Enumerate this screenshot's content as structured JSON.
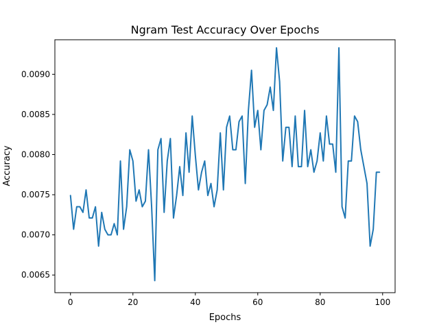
{
  "chart_data": {
    "type": "line",
    "title": "Ngram Test Accuracy Over Epochs",
    "xlabel": "Epochs",
    "ylabel": "Accuracy",
    "xlim": [
      -5,
      104
    ],
    "ylim": [
      0.00628,
      0.00943
    ],
    "xticks": [
      0,
      20,
      40,
      60,
      80,
      100
    ],
    "yticks": [
      0.0065,
      0.007,
      0.0075,
      0.008,
      0.0085,
      0.009
    ],
    "ytick_labels": [
      "0.0065",
      "0.0070",
      "0.0075",
      "0.0080",
      "0.0085",
      "0.0090"
    ],
    "grid": false,
    "series": [
      {
        "color": "#1f77b4",
        "x": [
          0,
          1,
          2,
          3,
          4,
          5,
          6,
          7,
          8,
          9,
          10,
          11,
          12,
          13,
          14,
          15,
          16,
          17,
          18,
          19,
          20,
          21,
          22,
          23,
          24,
          25,
          26,
          27,
          28,
          29,
          30,
          31,
          32,
          33,
          34,
          35,
          36,
          37,
          38,
          39,
          40,
          41,
          42,
          43,
          44,
          45,
          46,
          47,
          48,
          49,
          50,
          51,
          52,
          53,
          54,
          55,
          56,
          57,
          58,
          59,
          60,
          61,
          62,
          63,
          64,
          65,
          66,
          67,
          68,
          69,
          70,
          71,
          72,
          73,
          74,
          75,
          76,
          77,
          78,
          79,
          80,
          81,
          82,
          83,
          84,
          85,
          86,
          87,
          88,
          89,
          90,
          91,
          92,
          93,
          94,
          95,
          96,
          97,
          98,
          99
        ],
        "values": [
          0.00749,
          0.00707,
          0.00735,
          0.00735,
          0.00728,
          0.00756,
          0.00721,
          0.00721,
          0.00735,
          0.00686,
          0.00728,
          0.00707,
          0.007,
          0.007,
          0.00714,
          0.007,
          0.00792,
          0.00707,
          0.00735,
          0.00806,
          0.00792,
          0.00742,
          0.00756,
          0.00735,
          0.00742,
          0.00806,
          0.00735,
          0.00643,
          0.00806,
          0.0082,
          0.00728,
          0.00792,
          0.0082,
          0.00721,
          0.00749,
          0.00785,
          0.00749,
          0.00827,
          0.00778,
          0.00848,
          0.00799,
          0.00756,
          0.00778,
          0.00792,
          0.00749,
          0.00764,
          0.00735,
          0.00756,
          0.00827,
          0.00756,
          0.00834,
          0.00848,
          0.00806,
          0.00806,
          0.00841,
          0.00848,
          0.00764,
          0.00855,
          0.00905,
          0.00834,
          0.00855,
          0.00806,
          0.00855,
          0.00862,
          0.00884,
          0.00855,
          0.00933,
          0.00891,
          0.00792,
          0.00834,
          0.00834,
          0.00785,
          0.00848,
          0.00785,
          0.00785,
          0.00855,
          0.00785,
          0.00806,
          0.00778,
          0.00792,
          0.00827,
          0.00792,
          0.00848,
          0.00813,
          0.00813,
          0.00778,
          0.00933,
          0.00735,
          0.00721,
          0.00792,
          0.00792,
          0.00848,
          0.00841,
          0.00806,
          0.00785,
          0.00764,
          0.00686,
          0.00707,
          0.00778,
          0.00778
        ]
      }
    ]
  }
}
